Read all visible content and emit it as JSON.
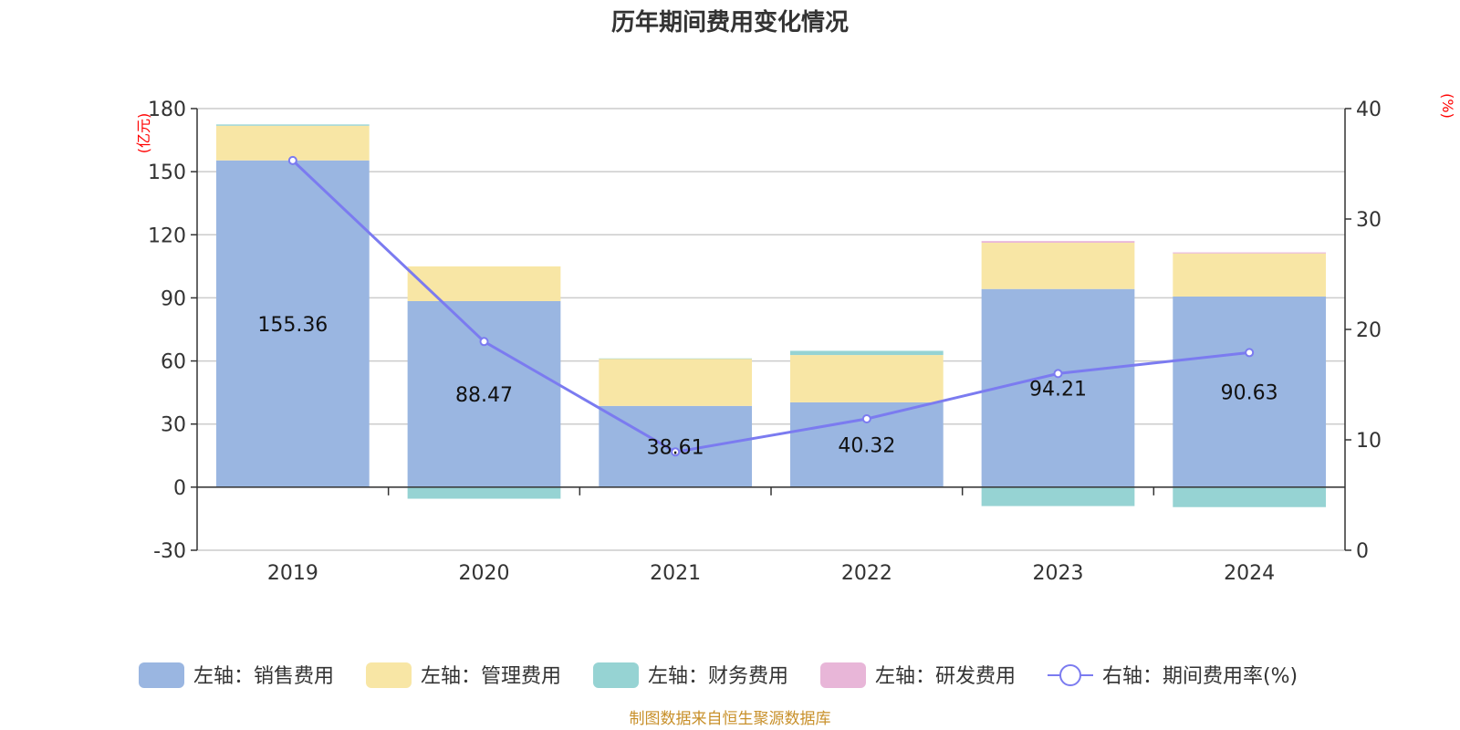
{
  "chart_data": {
    "type": "bar",
    "title": "历年期间费用变化情况",
    "categories": [
      "2019",
      "2020",
      "2021",
      "2022",
      "2023",
      "2024"
    ],
    "left_axis": {
      "unit": "(亿元)",
      "ylim": [
        -30,
        180
      ],
      "ticks": [
        -30,
        0,
        30,
        60,
        90,
        120,
        150,
        180
      ]
    },
    "right_axis": {
      "unit": "(%)",
      "ylim": [
        0,
        40
      ],
      "ticks": [
        0,
        10,
        20,
        30,
        40
      ]
    },
    "grid": true,
    "legend_position": "bottom",
    "series": [
      {
        "name": "左轴：销售费用",
        "type": "bar",
        "axis": "left",
        "color": "#9ab6e1",
        "values": [
          155.36,
          88.47,
          38.61,
          40.32,
          94.21,
          90.63
        ],
        "labels": [
          "155.36",
          "88.47",
          "38.61",
          "40.32",
          "94.21",
          "90.63"
        ]
      },
      {
        "name": "左轴：管理费用",
        "type": "bar",
        "axis": "left",
        "color": "#f8e6a5",
        "values": [
          16.5,
          16.5,
          22.5,
          22.5,
          22.0,
          20.5
        ]
      },
      {
        "name": "左轴：财务费用",
        "type": "bar",
        "axis": "left",
        "color": "#96d3d3",
        "values": [
          0.6,
          -5.5,
          0.1,
          2.0,
          -9.0,
          -9.5
        ]
      },
      {
        "name": "左轴：研发费用",
        "type": "bar",
        "axis": "left",
        "color": "#e8b6d8",
        "values": [
          0.0,
          0.0,
          0.0,
          0.0,
          0.8,
          0.5
        ]
      },
      {
        "name": "右轴：期间费用率(%)",
        "type": "line",
        "axis": "right",
        "color": "#7b7bf0",
        "values": [
          35.3,
          18.9,
          8.9,
          11.9,
          16.0,
          17.9
        ]
      }
    ],
    "source": "制图数据来自恒生聚源数据库"
  }
}
